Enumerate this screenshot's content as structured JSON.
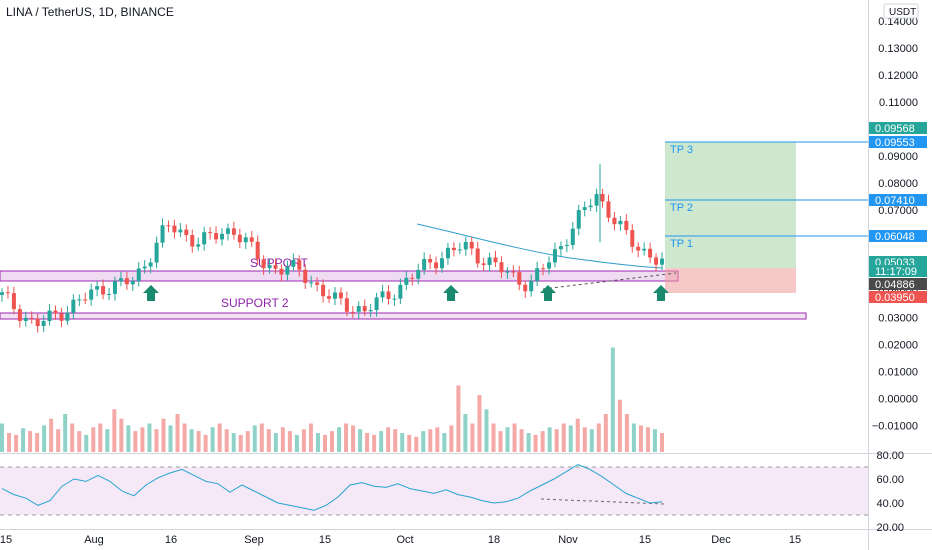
{
  "header": {
    "symbol_title": "LINA / TetherUS, 1D, BINANCE",
    "currency_label": "USDT"
  },
  "chart_data": {
    "type": "candlestick",
    "title": "LINA / TetherUS, 1D, BINANCE",
    "y_axis": {
      "label": "USDT",
      "ticks": [
        "0.14000",
        "0.13000",
        "0.12000",
        "0.11000",
        "0.10000",
        "0.09000",
        "0.08000",
        "0.07000",
        "0.06000",
        "0.05000",
        "0.04000",
        "0.03000",
        "0.02000",
        "0.01000",
        "0.00000",
        "−0.01000"
      ],
      "range": [
        -0.0135,
        0.1435
      ]
    },
    "x_axis": {
      "ticks": [
        "15",
        "Aug",
        "16",
        "Sep",
        "15",
        "Oct",
        "18",
        "Nov",
        "15",
        "Dec",
        "15"
      ],
      "range": [
        "Jul 14",
        "Dec 20"
      ]
    },
    "price_series": [
      {
        "date": "Jul 14",
        "close": 0.038
      },
      {
        "date": "Jul 20",
        "close": 0.027
      },
      {
        "date": "Jul 27",
        "close": 0.0335
      },
      {
        "date": "Aug 3",
        "close": 0.041
      },
      {
        "date": "Aug 10",
        "close": 0.0435
      },
      {
        "date": "Aug 17",
        "close": 0.064
      },
      {
        "date": "Aug 24",
        "close": 0.058
      },
      {
        "date": "Sep 1",
        "close": 0.063
      },
      {
        "date": "Sep 7",
        "close": 0.049
      },
      {
        "date": "Sep 14",
        "close": 0.0475
      },
      {
        "date": "Sep 21",
        "close": 0.0365
      },
      {
        "date": "Sep 28",
        "close": 0.0325
      },
      {
        "date": "Oct 3",
        "close": 0.041
      },
      {
        "date": "Oct 10",
        "close": 0.051
      },
      {
        "date": "Oct 18",
        "close": 0.0565
      },
      {
        "date": "Oct 25",
        "close": 0.0485
      },
      {
        "date": "Oct 28",
        "close": 0.042
      },
      {
        "date": "Nov 3",
        "close": 0.058
      },
      {
        "date": "Nov 8",
        "close": 0.076
      },
      {
        "date": "Nov 14",
        "close": 0.0585
      },
      {
        "date": "Nov 18",
        "close": 0.0503
      }
    ],
    "price_labels": [
      {
        "text": "0.09568",
        "color": "#26a69a"
      },
      {
        "text": "0.09553",
        "color": "#2196f3"
      },
      {
        "text": "0.07410",
        "color": "#2196f3"
      },
      {
        "text": "0.06048",
        "color": "#2196f3"
      },
      {
        "text": "0.05033",
        "color": "#26a69a"
      },
      {
        "text": "11:17:09",
        "color": "#26a69a"
      },
      {
        "text": "0.04886",
        "color": "#4a4a4a"
      },
      {
        "text": "0.03950",
        "color": "#ef5350"
      }
    ],
    "annotations": {
      "support_label": "SUPPORT",
      "support2_label": "SUPPORT 2",
      "tp1": "TP 1",
      "tp2": "TP 2",
      "tp3": "TP 3",
      "support_zone": [
        0.0485,
        0.0515
      ],
      "support2_zone": [
        0.0293,
        0.0307
      ],
      "tp_levels": [
        0.06048,
        0.0741,
        0.09553
      ],
      "entry": 0.0503,
      "stop": 0.0395,
      "target": 0.09553
    },
    "rsi": {
      "ticks": [
        "80.00",
        "60.00",
        "40.00",
        "20.00"
      ],
      "range": [
        19,
        83
      ],
      "bands": [
        70,
        30
      ],
      "values": [
        52,
        47,
        44,
        38,
        42,
        54,
        60,
        58,
        63,
        58,
        50,
        46,
        55,
        61,
        65,
        68,
        63,
        58,
        56,
        49,
        55,
        50,
        45,
        40,
        38,
        36,
        34,
        38,
        45,
        55,
        57,
        54,
        53,
        56,
        52,
        50,
        48,
        51,
        47,
        45,
        42,
        40,
        41,
        44,
        50,
        55,
        60,
        66,
        72,
        68,
        62,
        55,
        48,
        44,
        40,
        41
      ]
    },
    "volume": {
      "values": [
        30,
        20,
        18,
        25,
        22,
        20,
        28,
        35,
        24,
        40,
        30,
        22,
        18,
        26,
        30,
        24,
        45,
        35,
        28,
        22,
        26,
        30,
        24,
        35,
        28,
        40,
        30,
        24,
        22,
        18,
        26,
        30,
        24,
        20,
        18,
        22,
        28,
        30,
        24,
        20,
        26,
        22,
        18,
        24,
        30,
        20,
        18,
        22,
        26,
        30,
        28,
        24,
        20,
        18,
        22,
        26,
        24,
        20,
        18,
        16,
        22,
        24,
        26,
        20,
        28,
        70,
        40,
        30,
        60,
        45,
        30,
        22,
        26,
        30,
        24,
        20,
        18,
        22,
        26,
        24,
        30,
        28,
        35,
        26,
        24,
        30,
        40,
        110,
        55,
        40,
        30,
        28,
        26,
        24,
        20
      ]
    }
  }
}
